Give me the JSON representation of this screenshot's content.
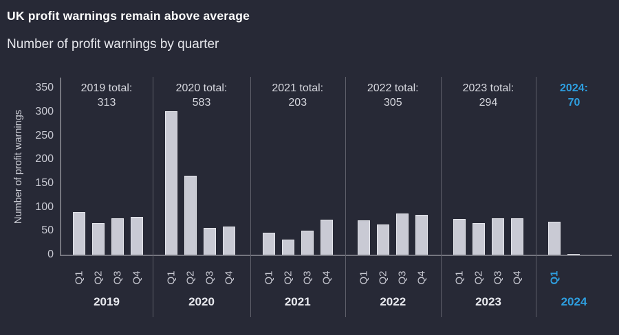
{
  "title": "UK profit warnings remain above average",
  "subtitle": "Number of profit warnings by quarter",
  "colors": {
    "background": "#272936",
    "bar_fill": "#c9cad4",
    "bar_border": "#e4e5eb",
    "accent_blue": "#2e9fe0",
    "axis_line": "#75767f",
    "separator": "#5e5f6a",
    "text_light_gray": "#c7c8d1",
    "text_bright": "#ffffff"
  },
  "chart_data": {
    "type": "bar",
    "title": "UK profit warnings remain above average",
    "subtitle": "Number of profit warnings by quarter",
    "ylabel": "Number of profit warnings",
    "xlabel": "",
    "ylim": [
      0,
      350
    ],
    "y_ticks": [
      0,
      50,
      100,
      150,
      200,
      250,
      300,
      350
    ],
    "grid": false,
    "legend": false,
    "groups": [
      {
        "year": "2019",
        "total_label": "2019 total:",
        "total_value": "313",
        "highlight": false,
        "quarters": [
          {
            "label": "Q1",
            "value": 89
          },
          {
            "label": "Q2",
            "value": 67
          },
          {
            "label": "Q3",
            "value": 77
          },
          {
            "label": "Q4",
            "value": 80
          }
        ]
      },
      {
        "year": "2020",
        "total_label": "2020 total:",
        "total_value": "583",
        "highlight": false,
        "quarters": [
          {
            "label": "Q1",
            "value": 301
          },
          {
            "label": "Q2",
            "value": 166
          },
          {
            "label": "Q3",
            "value": 57
          },
          {
            "label": "Q4",
            "value": 59
          }
        ]
      },
      {
        "year": "2021",
        "total_label": "2021 total:",
        "total_value": "203",
        "highlight": false,
        "quarters": [
          {
            "label": "Q1",
            "value": 46
          },
          {
            "label": "Q2",
            "value": 32
          },
          {
            "label": "Q3",
            "value": 51
          },
          {
            "label": "Q4",
            "value": 74
          }
        ]
      },
      {
        "year": "2022",
        "total_label": "2022 total:",
        "total_value": "305",
        "highlight": false,
        "quarters": [
          {
            "label": "Q1",
            "value": 72
          },
          {
            "label": "Q2",
            "value": 64
          },
          {
            "label": "Q3",
            "value": 86
          },
          {
            "label": "Q4",
            "value": 83
          }
        ]
      },
      {
        "year": "2023",
        "total_label": "2023 total:",
        "total_value": "294",
        "highlight": false,
        "quarters": [
          {
            "label": "Q1",
            "value": 75
          },
          {
            "label": "Q2",
            "value": 66
          },
          {
            "label": "Q3",
            "value": 76
          },
          {
            "label": "Q4",
            "value": 77
          }
        ]
      },
      {
        "year": "2024",
        "total_label": "2024:",
        "total_value": "70",
        "highlight": true,
        "quarters": [
          {
            "label": "Q1",
            "value": 70
          },
          {
            "label": "",
            "value": 1.5
          }
        ]
      }
    ]
  }
}
